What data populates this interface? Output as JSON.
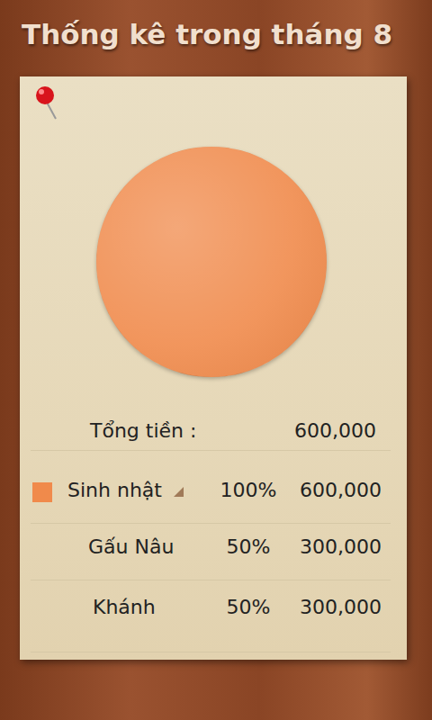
{
  "chart_data": {
    "type": "pie",
    "title": "Thống kê trong tháng 8",
    "categories": [
      "Sinh nhật"
    ],
    "values": [
      100
    ],
    "colors": [
      "#f08a4b"
    ]
  },
  "table": {
    "total": {
      "label": "Tổng tiền :",
      "amount": "600,000"
    },
    "rows": [
      {
        "label": "Sinh nhật",
        "percent": "100%",
        "amount": "600,000",
        "marker": true
      },
      {
        "label": "Gấu Nâu",
        "percent": "50%",
        "amount": "300,000"
      },
      {
        "label": "Khánh",
        "percent": "50%",
        "amount": "300,000"
      }
    ]
  }
}
